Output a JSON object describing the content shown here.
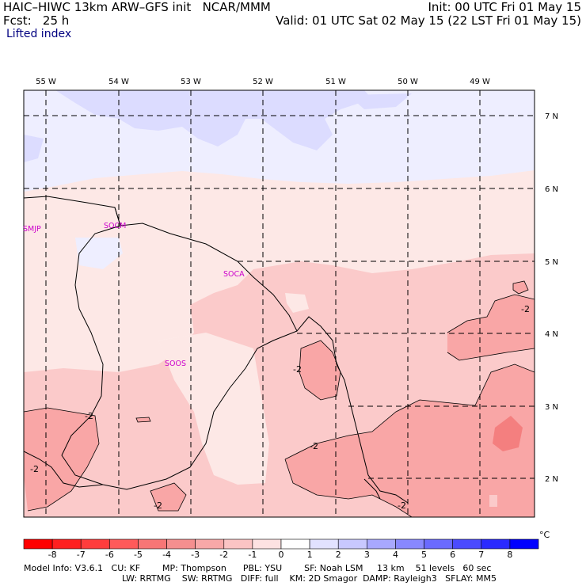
{
  "header": {
    "title": "HAIC–HIWC 13km ARW–GFS init   NCAR/MMM",
    "init": "Init: 00 UTC Fri 01 May 15",
    "forecast": "Fcst:   25 h",
    "valid": "Valid: 01 UTC Sat 02 May 15 (22 LST Fri 01 May 15)",
    "field": "Lifted index"
  },
  "map": {
    "longitude_labels": [
      "55 W",
      "54 W",
      "53 W",
      "52 W",
      "51 W",
      "50 W",
      "49 W"
    ],
    "latitude_labels": [
      "7 N",
      "6 N",
      "5 N",
      "4 N",
      "3 N",
      "2 N"
    ],
    "stations": [
      "SMJP",
      "SOCM",
      "SOCA",
      "SOOS"
    ],
    "contour_label": "-2",
    "colors": {
      "background": "#fde8e6",
      "pos_1_2": "#dcdcff",
      "pos_0_1": "#eeeeff",
      "neg_0_1": "#fde8e6",
      "neg_1_2": "#fbcaca",
      "neg_2_3": "#f9a6a6",
      "neg_3_4": "#f47f7f",
      "neutral": "#fff5f3"
    }
  },
  "colorbar": {
    "labels": [
      "-8",
      "-7",
      "-6",
      "-5",
      "-4",
      "-3",
      "-2",
      "-1",
      "0",
      "1",
      "2",
      "3",
      "4",
      "5",
      "6",
      "7",
      "8"
    ],
    "unit": "°C",
    "colors": [
      "#ff0000",
      "#ff2020",
      "#ff3c3c",
      "#ff5a5a",
      "#f77676",
      "#f58f8f",
      "#f8a8a8",
      "#fbc4c4",
      "#fde2e2",
      "#ffffff",
      "#e2e2ff",
      "#c8c8ff",
      "#a8a8ff",
      "#8888ff",
      "#6a6aff",
      "#4b4bff",
      "#2a2aff",
      "#0000ff"
    ]
  },
  "footer": {
    "line1": "Model Info: V3.6.1   CU: KF        MP: Thompson      PBL: YSU        SF: Noah LSM     13 km    51 levels   60 sec",
    "line2": "LW: RRTMG    SW: RRTMG   DIFF: full    KM: 2D Smagor  DAMP: Rayleigh3   SFLAY: MM5"
  }
}
